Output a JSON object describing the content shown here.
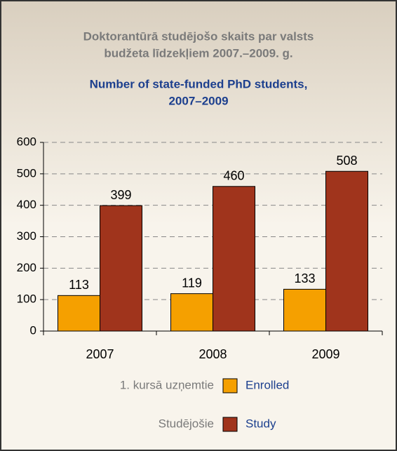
{
  "chart_data": {
    "type": "bar",
    "title_lv": [
      "Doktorantūrā studējošo skaits par valsts",
      "budžeta līdzekļiem 2007.–2009. g."
    ],
    "title": [
      "Number of state-funded PhD students,",
      "2007–2009"
    ],
    "categories": [
      "2007",
      "2008",
      "2009"
    ],
    "series": [
      {
        "name": "Enrolled",
        "name_lv": "1. kursā uzņemtie",
        "color": "#f5a000",
        "values": [
          113,
          119,
          133
        ]
      },
      {
        "name": "Study",
        "name_lv": "Studējošie",
        "color": "#a0341c",
        "values": [
          399,
          460,
          508
        ]
      }
    ],
    "ylim": [
      0,
      600
    ],
    "yticks": [
      0,
      100,
      200,
      300,
      400,
      500,
      600
    ],
    "grid": true
  }
}
